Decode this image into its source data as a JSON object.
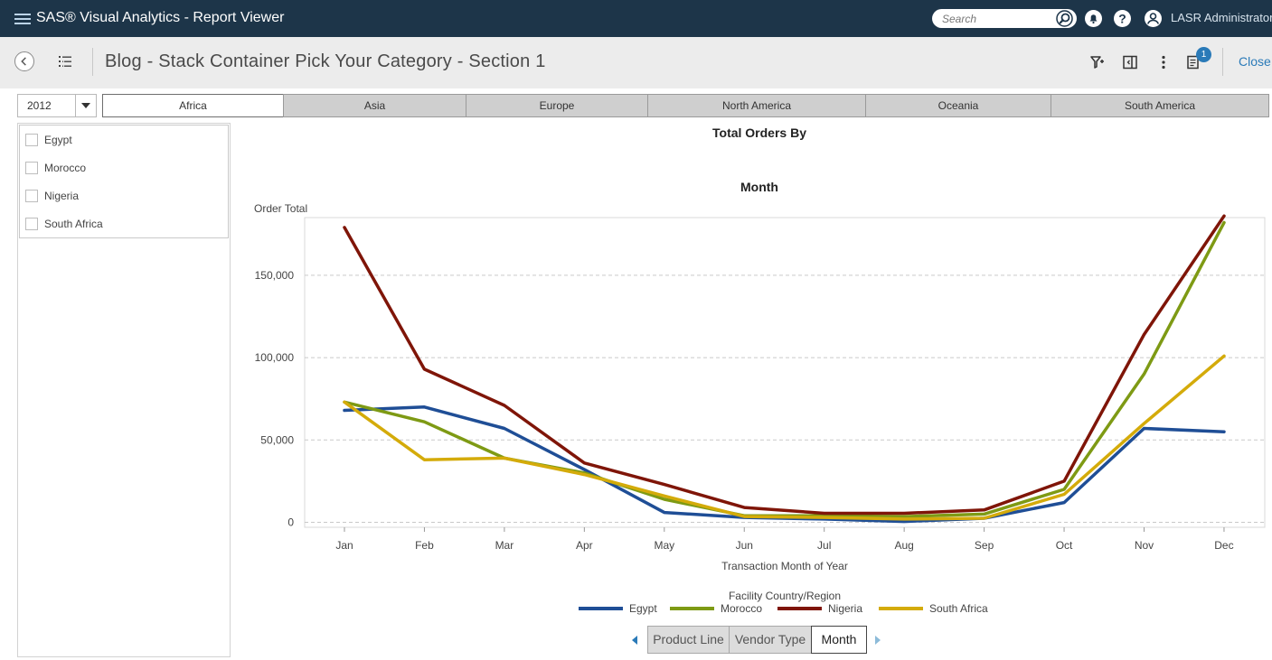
{
  "app": {
    "title": "SAS® Visual Analytics - Report Viewer",
    "search_placeholder": "Search",
    "user_name": "LASR Administrator"
  },
  "header": {
    "report_title": "Blog - Stack Container Pick Your Category - Section 1",
    "notification_count": "1",
    "close_label": "Close"
  },
  "filters": {
    "year": "2012",
    "regions": [
      "Africa",
      "Asia",
      "Europe",
      "North America",
      "Oceania",
      "South America"
    ],
    "active_region": "Africa",
    "countries": [
      "Egypt",
      "Morocco",
      "Nigeria",
      "South Africa"
    ]
  },
  "hierarchy": {
    "buttons": [
      "Product Line",
      "Vendor Type",
      "Month"
    ],
    "active": "Month"
  },
  "chart_data": {
    "type": "line",
    "title_line1": "Total Orders By",
    "title_line2": "Month",
    "ylabel": "Order Total",
    "xlabel": "Transaction Month of Year",
    "legend_title": "Facility Country/Region",
    "legend_position": "bottom",
    "grid": true,
    "ylim": [
      -3000,
      185000
    ],
    "yticks": [
      0,
      50000,
      100000,
      150000
    ],
    "ytick_labels": [
      "0",
      "50,000",
      "100,000",
      "150,000"
    ],
    "categories": [
      "Jan",
      "Feb",
      "Mar",
      "Apr",
      "May",
      "Jun",
      "Jul",
      "Aug",
      "Sep",
      "Oct",
      "Nov",
      "Dec"
    ],
    "series": [
      {
        "name": "Egypt",
        "color": "#1f4e96",
        "values": [
          68000,
          70000,
          57000,
          32000,
          6000,
          3000,
          2000,
          500,
          2500,
          12000,
          57000,
          55000
        ]
      },
      {
        "name": "Morocco",
        "color": "#7e9a14",
        "values": [
          73000,
          61000,
          39000,
          30000,
          14000,
          4000,
          4000,
          3500,
          5000,
          20000,
          90000,
          182000
        ]
      },
      {
        "name": "Nigeria",
        "color": "#7f1508",
        "values": [
          179000,
          93000,
          71000,
          36000,
          23000,
          9000,
          5500,
          5500,
          7500,
          25000,
          114000,
          186000
        ]
      },
      {
        "name": "South Africa",
        "color": "#d4ab0a",
        "values": [
          73000,
          38000,
          39000,
          29000,
          16000,
          3500,
          3000,
          2000,
          2500,
          17000,
          60000,
          101000
        ]
      }
    ]
  }
}
